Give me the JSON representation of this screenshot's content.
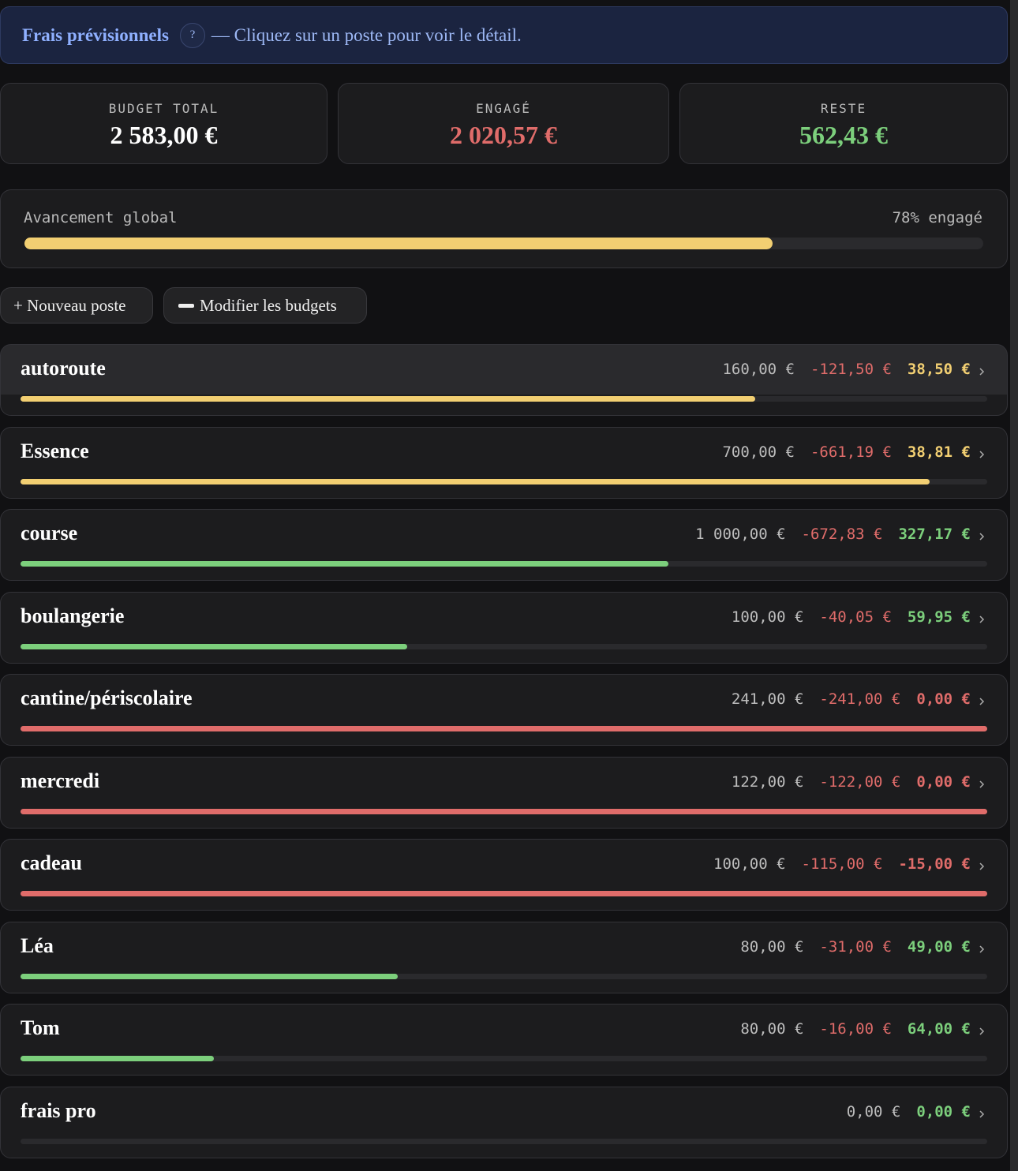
{
  "header": {
    "title": "Frais prévisionnels",
    "help": "?",
    "hint": "— Cliquez sur un poste pour voir le détail."
  },
  "summary": [
    {
      "label": "BUDGET TOTAL",
      "value": "2 583,00 €",
      "color": "#ffffff"
    },
    {
      "label": "ENGAGÉ",
      "value": "2 020,57 €",
      "color": "#e06c6a"
    },
    {
      "label": "RESTE",
      "value": "562,43 €",
      "color": "#7ccf7c"
    }
  ],
  "progress": {
    "label": "Avancement global",
    "value_label": "78% engagé",
    "value": 78,
    "color": "#f2cf72"
  },
  "actions": [
    "+ Nouveau poste",
    "Modifier les budgets"
  ],
  "items": [
    {
      "name": "autoroute",
      "budget": "160,00 €",
      "spent": "-121,50 €",
      "remaining": "38,50 €",
      "progress": 76,
      "color": "#f2cf72"
    },
    {
      "name": "Essence",
      "budget": "700,00 €",
      "spent": "-661,19 €",
      "remaining": "38,81 €",
      "progress": 94,
      "color": "#f2cf72"
    },
    {
      "name": "course",
      "budget": "1 000,00 €",
      "spent": "-672,83 €",
      "remaining": "327,17 €",
      "progress": 67,
      "color": "#7ccf7c"
    },
    {
      "name": "boulangerie",
      "budget": "100,00 €",
      "spent": "-40,05 €",
      "remaining": "59,95 €",
      "progress": 40,
      "color": "#7ccf7c"
    },
    {
      "name": "cantine/périscolaire",
      "budget": "241,00 €",
      "spent": "-241,00 €",
      "remaining": "0,00 €",
      "progress": 100,
      "color": "#e06c6a"
    },
    {
      "name": "mercredi",
      "budget": "122,00 €",
      "spent": "-122,00 €",
      "remaining": "0,00 €",
      "progress": 100,
      "color": "#e06c6a"
    },
    {
      "name": "cadeau",
      "budget": "100,00 €",
      "spent": "-115,00 €",
      "remaining": "-15,00 €",
      "progress": 100,
      "color": "#e06c6a"
    },
    {
      "name": "Léa",
      "budget": "80,00 €",
      "spent": "-31,00 €",
      "remaining": "49,00 €",
      "progress": 39,
      "color": "#7ccf7c"
    },
    {
      "name": "Tom",
      "budget": "80,00 €",
      "spent": "-16,00 €",
      "remaining": "64,00 €",
      "progress": 20,
      "color": "#7ccf7c"
    },
    {
      "name": "frais pro",
      "budget": "0,00 €",
      "remaining": "0,00 €",
      "progress": 0,
      "color": "#7ccf7c"
    }
  ]
}
